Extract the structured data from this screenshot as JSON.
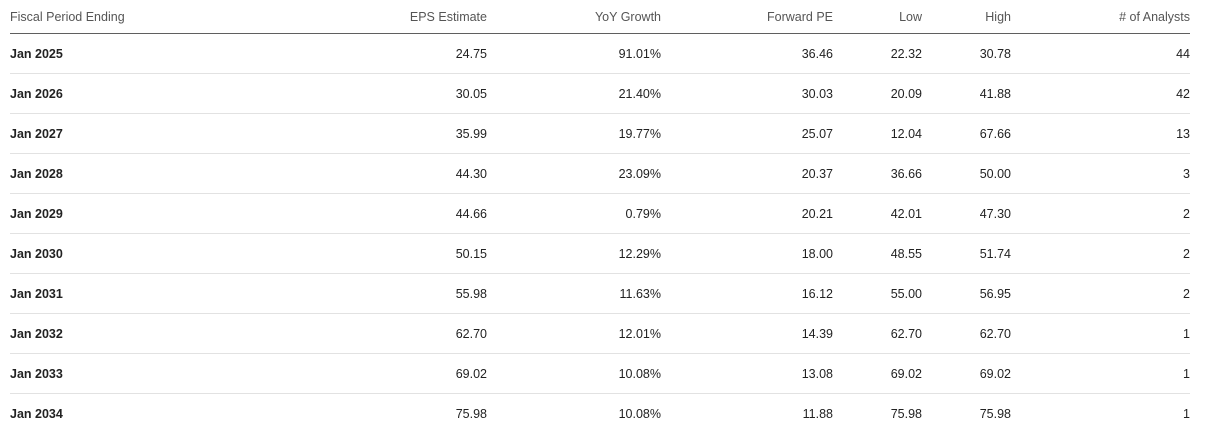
{
  "table": {
    "headers": {
      "period": "Fiscal Period Ending",
      "eps": "EPS Estimate",
      "yoy": "YoY Growth",
      "fpe": "Forward PE",
      "low": "Low",
      "high": "High",
      "analysts": "# of Analysts"
    },
    "rows": [
      {
        "period": "Jan 2025",
        "eps": "24.75",
        "yoy": "91.01%",
        "fpe": "36.46",
        "low": "22.32",
        "high": "30.78",
        "analysts": "44"
      },
      {
        "period": "Jan 2026",
        "eps": "30.05",
        "yoy": "21.40%",
        "fpe": "30.03",
        "low": "20.09",
        "high": "41.88",
        "analysts": "42"
      },
      {
        "period": "Jan 2027",
        "eps": "35.99",
        "yoy": "19.77%",
        "fpe": "25.07",
        "low": "12.04",
        "high": "67.66",
        "analysts": "13"
      },
      {
        "period": "Jan 2028",
        "eps": "44.30",
        "yoy": "23.09%",
        "fpe": "20.37",
        "low": "36.66",
        "high": "50.00",
        "analysts": "3"
      },
      {
        "period": "Jan 2029",
        "eps": "44.66",
        "yoy": "0.79%",
        "fpe": "20.21",
        "low": "42.01",
        "high": "47.30",
        "analysts": "2"
      },
      {
        "period": "Jan 2030",
        "eps": "50.15",
        "yoy": "12.29%",
        "fpe": "18.00",
        "low": "48.55",
        "high": "51.74",
        "analysts": "2"
      },
      {
        "period": "Jan 2031",
        "eps": "55.98",
        "yoy": "11.63%",
        "fpe": "16.12",
        "low": "55.00",
        "high": "56.95",
        "analysts": "2"
      },
      {
        "period": "Jan 2032",
        "eps": "62.70",
        "yoy": "12.01%",
        "fpe": "14.39",
        "low": "62.70",
        "high": "62.70",
        "analysts": "1"
      },
      {
        "period": "Jan 2033",
        "eps": "69.02",
        "yoy": "10.08%",
        "fpe": "13.08",
        "low": "69.02",
        "high": "69.02",
        "analysts": "1"
      },
      {
        "period": "Jan 2034",
        "eps": "75.98",
        "yoy": "10.08%",
        "fpe": "11.88",
        "low": "75.98",
        "high": "75.98",
        "analysts": "1"
      }
    ]
  }
}
